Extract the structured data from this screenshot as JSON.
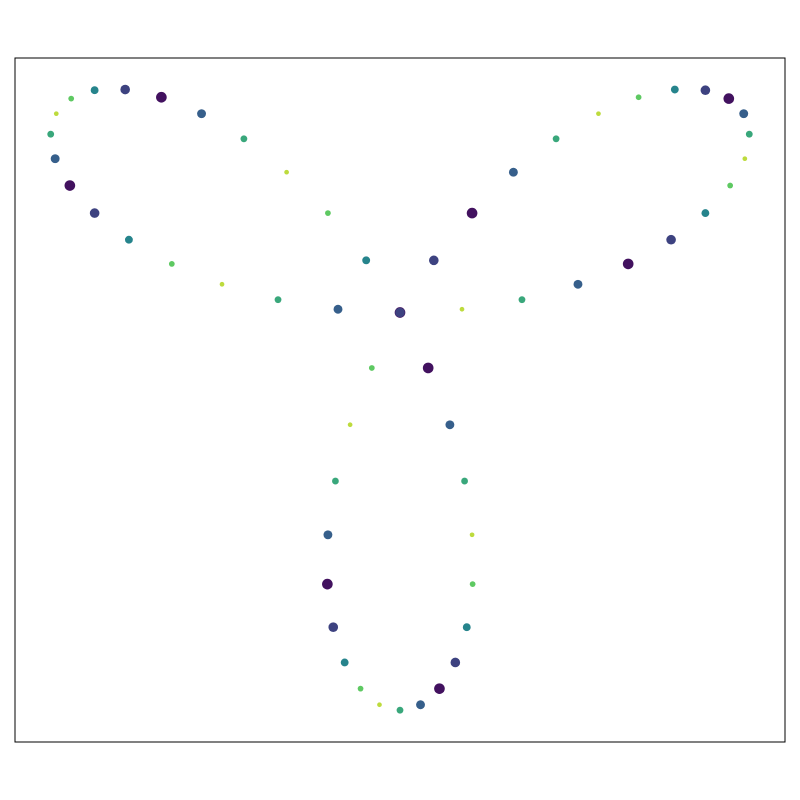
{
  "chart_data": {
    "type": "scatter",
    "x": [
      0,
      0.1562,
      0.3073,
      0.4484,
      0.5749,
      0.683,
      0.7694,
      0.8318,
      0.8688,
      0.88,
      0.866,
      0.8284,
      0.7694,
      0.6924,
      0.6012,
      0.5,
      0.3933,
      0.2857,
      0.1816,
      0.0852,
      0,
      -0.071,
      -0.1257,
      -0.1627,
      -0.1816,
      -0.183,
      -0.1682,
      -0.1394,
      -0.0994,
      -0.0517,
      0,
      0.0517,
      0.0994,
      0.1394,
      0.1682,
      0.183,
      0.1816,
      0.1627,
      0.1257,
      0.071,
      0,
      -0.0852,
      -0.1816,
      -0.2857,
      -0.3933,
      -0.5,
      -0.6012,
      -0.6924,
      -0.7694,
      -0.8284,
      -0.866,
      -0.88,
      -0.8688,
      -0.8318,
      -0.7694,
      -0.683,
      -0.5749,
      -0.4484,
      -0.3073,
      -0.1562
    ],
    "y": [
      0,
      0.0082,
      0.0323,
      0.071,
      0.1222,
      0.183,
      0.25,
      0.3193,
      0.3868,
      0.4484,
      0.5,
      0.5379,
      0.559,
      0.5607,
      0.5413,
      0.5,
      0.4368,
      0.3528,
      0.25,
      0.1312,
      0,
      -0.1394,
      -0.2823,
      -0.4238,
      -0.559,
      -0.683,
      -0.7913,
      -0.88,
      -0.9459,
      -0.9863,
      -1,
      -0.9863,
      -0.9459,
      -0.88,
      -0.7913,
      -0.683,
      -0.559,
      -0.4238,
      -0.2823,
      -0.1394,
      0,
      0.1312,
      0.25,
      0.3528,
      0.4368,
      0.5,
      0.5413,
      0.5607,
      0.559,
      0.5379,
      0.5,
      0.4484,
      0.3868,
      0.3193,
      0.25,
      0.183,
      0.1222,
      0.071,
      0.0323,
      0.0082
    ],
    "color_values": [
      0.05,
      0.9,
      0.6,
      0.3,
      0.05,
      0.2,
      0.45,
      0.75,
      0.9,
      0.6,
      0.3,
      0.05,
      0.2,
      0.45,
      0.75,
      0.9,
      0.6,
      0.3,
      0.05,
      0.2,
      0.45,
      0.75,
      0.9,
      0.6,
      0.3,
      0.05,
      0.2,
      0.45,
      0.75,
      0.9,
      0.6,
      0.3,
      0.05,
      0.2,
      0.45,
      0.75,
      0.9,
      0.6,
      0.3,
      0.05,
      0.2,
      0.45,
      0.75,
      0.9,
      0.6,
      0.3,
      0.05,
      0.2,
      0.45,
      0.75,
      0.9,
      0.6,
      0.3,
      0.05,
      0.2,
      0.45,
      0.75,
      0.9,
      0.6,
      0.3
    ],
    "colormap": [
      "#440154",
      "#3b528b",
      "#21918c",
      "#5ec962",
      "#fde725"
    ],
    "xlim": [
      -0.97,
      0.97
    ],
    "ylim": [
      -1.08,
      0.64
    ]
  }
}
